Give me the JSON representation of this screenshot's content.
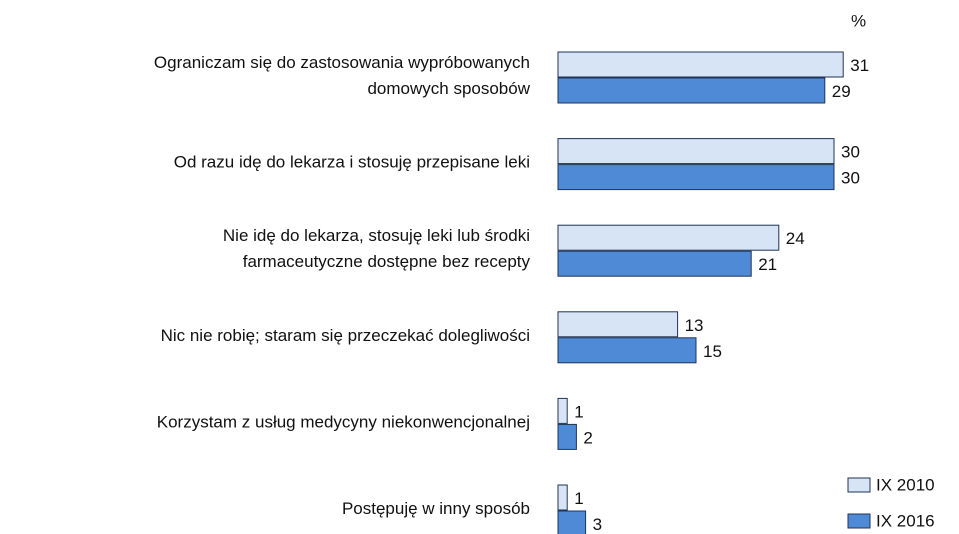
{
  "chart_data": {
    "type": "hbar",
    "unit_label": "%",
    "categories": [
      "Ograniczam się do zastosowania wypróbowanych\ndomowych sposobów",
      "Od razu idę do lekarza i stosuję przepisane leki",
      "Nie idę do lekarza, stosuję leki lub środki\nfarmaceutyczne dostępne bez recepty",
      "Nic nie robię; staram się przeczekać dolegliwości",
      "Korzystam z usług medycyny niekonwencjonalnej",
      "Postępuję w inny sposób"
    ],
    "series": [
      {
        "name": "IX 2010",
        "color": "#d7e4f6",
        "values": [
          31,
          30,
          24,
          13,
          1,
          1
        ]
      },
      {
        "name": "IX 2016",
        "color": "#4f8ad6",
        "values": [
          29,
          30,
          21,
          15,
          2,
          3
        ]
      }
    ],
    "xlim": [
      0,
      35
    ],
    "legend": "bottom-right"
  }
}
